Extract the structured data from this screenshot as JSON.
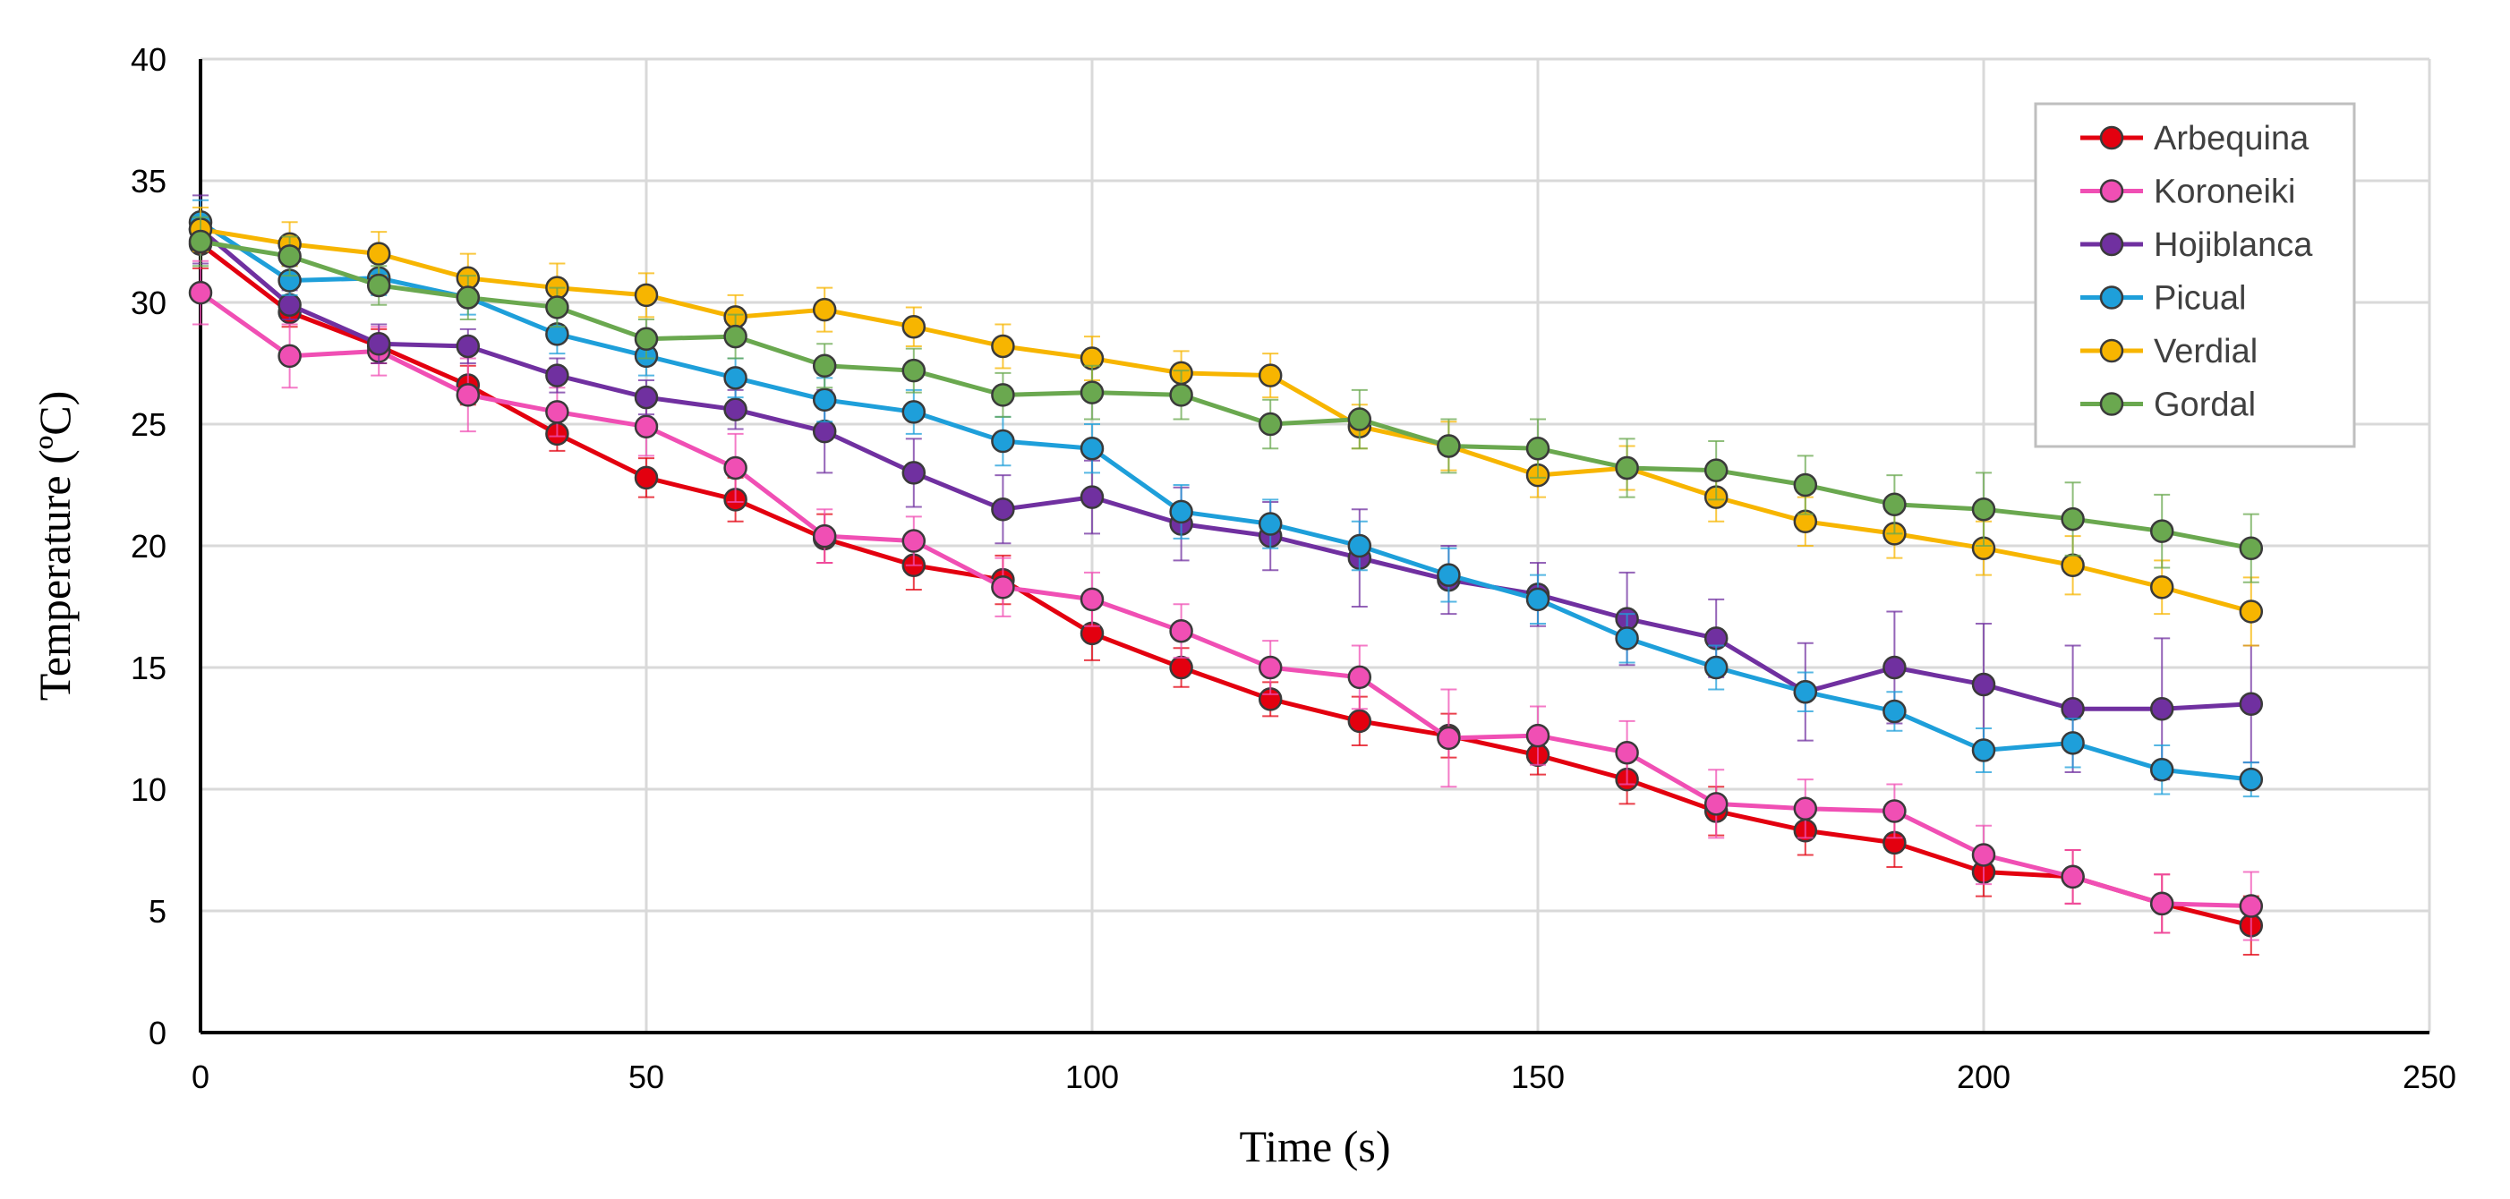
{
  "chart_data": {
    "type": "line",
    "title": "",
    "xlabel": "Time (s)",
    "ylabel": "Temperature (ºC)",
    "xlim": [
      0,
      250
    ],
    "ylim": [
      0,
      40
    ],
    "xticks": [
      0,
      50,
      100,
      150,
      200,
      250
    ],
    "yticks": [
      0,
      5,
      10,
      15,
      20,
      25,
      30,
      35,
      40
    ],
    "xtick_labels": [
      "0",
      "50",
      "100",
      "150",
      "200",
      "250"
    ],
    "ytick_labels": [
      "0",
      "5",
      "10",
      "15",
      "20",
      "25",
      "30",
      "35",
      "40"
    ],
    "grid": true,
    "legend_position": "top-right",
    "x": [
      0,
      10,
      20,
      30,
      40,
      50,
      60,
      70,
      80,
      90,
      100,
      110,
      120,
      130,
      140,
      150,
      160,
      170,
      180,
      190,
      200,
      210,
      220,
      230
    ],
    "series": [
      {
        "name": "Arbequina",
        "color": "#e3000f",
        "values": [
          32.4,
          29.6,
          28.2,
          26.6,
          24.6,
          22.8,
          21.9,
          20.3,
          19.2,
          18.6,
          16.4,
          15.0,
          13.7,
          12.8,
          12.2,
          11.4,
          10.4,
          9.1,
          8.3,
          7.8,
          6.6,
          6.4,
          5.3,
          4.4
        ],
        "errors": [
          1.0,
          0.6,
          0.7,
          0.8,
          0.7,
          0.8,
          0.9,
          1.0,
          1.0,
          1.0,
          1.1,
          0.8,
          0.7,
          1.0,
          0.9,
          0.8,
          1.0,
          1.0,
          1.0,
          1.0,
          1.0,
          1.1,
          1.2,
          1.2
        ]
      },
      {
        "name": "Koroneiki",
        "color": "#f04fb4",
        "values": [
          30.4,
          27.8,
          28.0,
          26.2,
          25.5,
          24.9,
          23.2,
          20.4,
          20.2,
          18.3,
          17.8,
          16.5,
          15.0,
          14.6,
          12.1,
          12.2,
          11.5,
          9.4,
          9.2,
          9.1,
          7.3,
          6.4,
          5.3,
          5.2
        ],
        "errors": [
          1.3,
          1.3,
          1.0,
          1.5,
          1.0,
          1.2,
          1.4,
          1.1,
          1.0,
          1.2,
          1.1,
          1.1,
          1.1,
          1.3,
          2.0,
          1.2,
          1.3,
          1.4,
          1.2,
          1.1,
          1.2,
          1.1,
          1.2,
          1.4
        ]
      },
      {
        "name": "Hojiblanca",
        "color": "#7030a0",
        "values": [
          33.0,
          29.9,
          28.3,
          28.2,
          27.0,
          26.1,
          25.6,
          24.7,
          23.0,
          21.5,
          22.0,
          20.9,
          20.4,
          19.5,
          18.6,
          18.0,
          17.0,
          16.2,
          14.0,
          15.0,
          14.3,
          13.3,
          13.3,
          13.5
        ],
        "errors": [
          1.4,
          0.6,
          0.8,
          0.7,
          0.7,
          0.7,
          0.8,
          1.7,
          1.4,
          1.4,
          1.5,
          1.5,
          1.4,
          2.0,
          1.4,
          1.3,
          1.9,
          1.6,
          2.0,
          2.3,
          2.5,
          2.6,
          2.9,
          2.4
        ]
      },
      {
        "name": "Picual",
        "color": "#1e9fda",
        "values": [
          33.3,
          30.9,
          31.0,
          30.2,
          28.7,
          27.8,
          26.9,
          26.0,
          25.5,
          24.3,
          24.0,
          21.4,
          20.9,
          20.0,
          18.8,
          17.8,
          16.2,
          15.0,
          14.0,
          13.2,
          11.6,
          11.9,
          10.8,
          10.4
        ],
        "errors": [
          0.9,
          0.6,
          0.7,
          0.7,
          0.8,
          0.8,
          0.8,
          0.9,
          0.9,
          1.0,
          1.0,
          1.1,
          1.0,
          1.0,
          1.1,
          1.0,
          1.0,
          0.9,
          0.8,
          0.8,
          0.9,
          1.0,
          1.0,
          0.7
        ]
      },
      {
        "name": "Verdial",
        "color": "#f7b500",
        "values": [
          33.0,
          32.4,
          32.0,
          31.0,
          30.6,
          30.3,
          29.4,
          29.7,
          29.0,
          28.2,
          27.7,
          27.1,
          27.0,
          24.9,
          24.1,
          22.9,
          23.2,
          22.0,
          21.0,
          20.5,
          19.9,
          19.2,
          18.3,
          17.3
        ],
        "errors": [
          0.9,
          0.9,
          0.9,
          1.0,
          1.0,
          0.9,
          0.9,
          0.9,
          0.8,
          0.9,
          0.9,
          0.9,
          0.9,
          0.9,
          1.0,
          0.9,
          0.9,
          1.0,
          1.0,
          1.0,
          1.1,
          1.2,
          1.1,
          1.4
        ]
      },
      {
        "name": "Gordal",
        "color": "#6aa84f",
        "values": [
          32.5,
          31.9,
          30.7,
          30.2,
          29.8,
          28.5,
          28.6,
          27.4,
          27.2,
          26.2,
          26.3,
          26.2,
          25.0,
          25.2,
          24.1,
          24.0,
          23.2,
          23.1,
          22.5,
          21.7,
          21.5,
          21.1,
          20.6,
          19.9
        ],
        "errors": [
          1.0,
          0.8,
          0.8,
          0.9,
          0.8,
          0.8,
          0.9,
          0.9,
          0.9,
          0.9,
          1.1,
          1.0,
          1.0,
          1.2,
          1.1,
          1.2,
          1.2,
          1.2,
          1.2,
          1.2,
          1.5,
          1.5,
          1.5,
          1.4
        ]
      }
    ]
  }
}
